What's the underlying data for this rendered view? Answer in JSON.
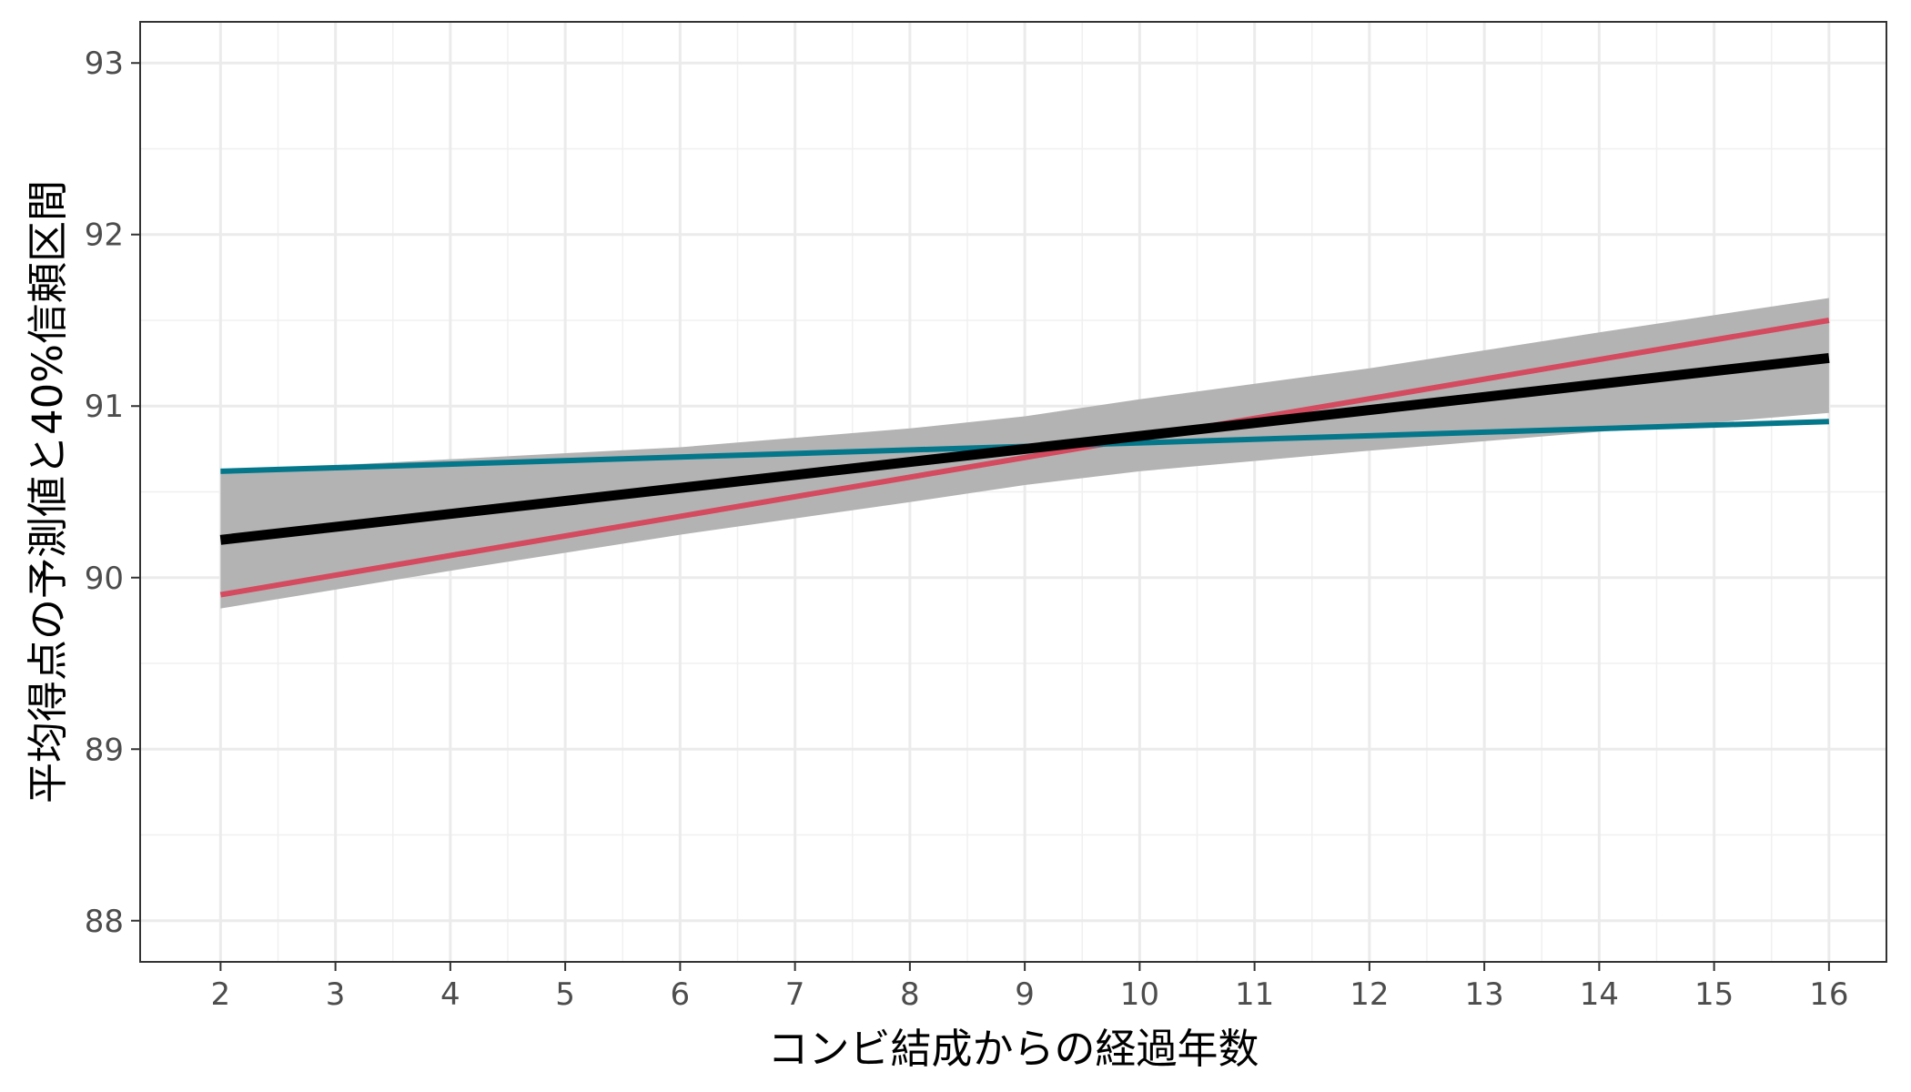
{
  "chart_data": {
    "type": "line",
    "title": "",
    "xlabel": "コンビ結成からの経過年数",
    "ylabel": "平均得点の予測値と40%信頼区間",
    "xlim": [
      1.3,
      16.5
    ],
    "ylim": [
      87.76,
      93.24
    ],
    "x_ticks": [
      2,
      3,
      4,
      5,
      6,
      7,
      8,
      9,
      10,
      11,
      12,
      13,
      14,
      15,
      16
    ],
    "y_ticks": [
      88,
      89,
      90,
      91,
      92,
      93
    ],
    "grid": true,
    "legend": "none",
    "band": {
      "x": [
        2,
        4,
        6,
        8,
        9,
        10,
        12,
        14,
        16
      ],
      "lower": [
        89.82,
        90.04,
        90.25,
        90.44,
        90.54,
        90.62,
        90.74,
        90.85,
        90.96
      ],
      "upper": [
        90.62,
        90.69,
        90.76,
        90.87,
        90.94,
        91.04,
        91.22,
        91.43,
        91.63
      ],
      "color": "#b3b3b3"
    },
    "series": [
      {
        "x": [
          2,
          16
        ],
        "y": [
          89.9,
          91.5
        ],
        "color": "#d44a5f",
        "width": 6
      },
      {
        "x": [
          2,
          16
        ],
        "y": [
          90.62,
          90.91
        ],
        "color": "#04778a",
        "width": 6
      },
      {
        "x": [
          2,
          16
        ],
        "y": [
          90.22,
          91.28
        ],
        "color": "#000000",
        "width": 11
      }
    ]
  }
}
